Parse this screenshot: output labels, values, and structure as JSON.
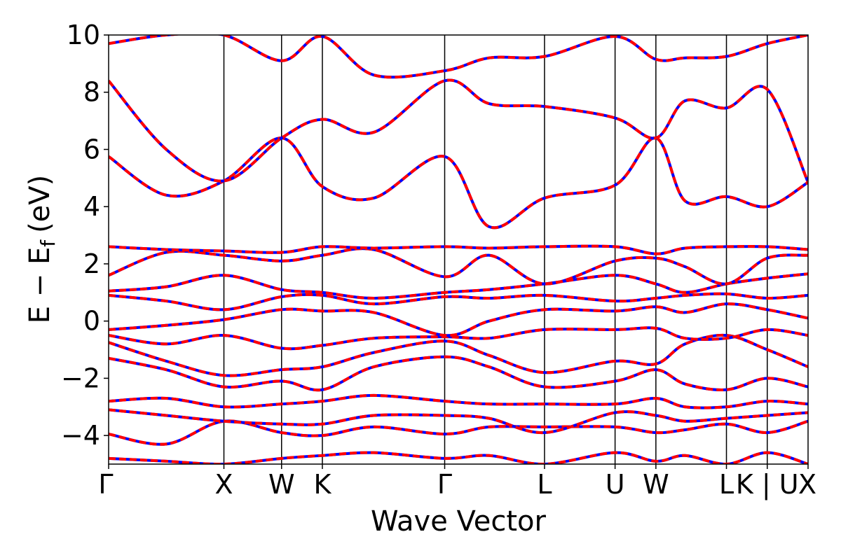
{
  "chart_data": {
    "type": "line",
    "title": "",
    "xlabel": "Wave Vector",
    "ylabel": "E − E_f (eV)",
    "ylabel_main": "E − E",
    "ylabel_sub": "f",
    "ylabel_unit": "(eV)",
    "ylim": [
      -5,
      10
    ],
    "yticks": [
      -4,
      -2,
      0,
      2,
      4,
      6,
      8,
      10
    ],
    "ytick_labels": [
      "−4",
      "−2",
      "0",
      "2",
      "4",
      "6",
      "8",
      "10"
    ],
    "kpath_labels": [
      "Γ",
      "X",
      "W",
      "K",
      "Γ",
      "L",
      "U",
      "W",
      "L",
      "K | U",
      "X"
    ],
    "kpath_positions": [
      0,
      1.0,
      1.5,
      1.854,
      2.915,
      3.781,
      4.393,
      4.747,
      5.359,
      5.713,
      6.067
    ],
    "grid": false,
    "legend": "none",
    "colors": {
      "series_a": "#ff0000",
      "series_b": "#0000ff",
      "separator": "#000000"
    },
    "series": [
      {
        "x": [
          0,
          0.5,
          1.0,
          1.5,
          1.854,
          2.3,
          2.915,
          3.3,
          3.781,
          4.393,
          4.747,
          5.0,
          5.359,
          5.713,
          6.067
        ],
        "values": [
          -4.8,
          -4.9,
          -5.0,
          -4.8,
          -4.7,
          -4.6,
          -4.8,
          -4.7,
          -5.0,
          -4.6,
          -4.9,
          -4.7,
          -5.0,
          -4.6,
          -5.0
        ]
      },
      {
        "x": [
          0,
          0.5,
          1.0,
          1.5,
          1.854,
          2.3,
          2.915,
          3.3,
          3.781,
          4.393,
          4.747,
          5.0,
          5.359,
          5.713,
          6.067
        ],
        "values": [
          -3.95,
          -4.3,
          -3.5,
          -3.9,
          -4.0,
          -3.7,
          -3.95,
          -3.7,
          -3.7,
          -3.7,
          -3.9,
          -3.8,
          -3.6,
          -3.9,
          -3.5
        ]
      },
      {
        "x": [
          0,
          0.5,
          1.0,
          1.5,
          1.854,
          2.3,
          2.915,
          3.3,
          3.781,
          4.393,
          4.747,
          5.0,
          5.359,
          5.713,
          6.067
        ],
        "values": [
          -3.1,
          -3.3,
          -3.5,
          -3.6,
          -3.6,
          -3.3,
          -3.3,
          -3.4,
          -3.9,
          -3.2,
          -3.3,
          -3.5,
          -3.4,
          -3.3,
          -3.2
        ]
      },
      {
        "x": [
          0,
          0.5,
          1.0,
          1.5,
          1.854,
          2.3,
          2.915,
          3.3,
          3.781,
          4.393,
          4.747,
          5.0,
          5.359,
          5.713,
          6.067
        ],
        "values": [
          -2.8,
          -2.7,
          -3.0,
          -2.9,
          -2.8,
          -2.6,
          -2.8,
          -2.9,
          -2.9,
          -2.9,
          -2.7,
          -3.0,
          -3.0,
          -2.8,
          -2.9
        ]
      },
      {
        "x": [
          0,
          0.5,
          1.0,
          1.5,
          1.854,
          2.3,
          2.915,
          3.3,
          3.781,
          4.393,
          4.747,
          5.0,
          5.359,
          5.713,
          6.067
        ],
        "values": [
          -1.3,
          -1.7,
          -2.3,
          -2.1,
          -2.4,
          -1.6,
          -1.25,
          -1.6,
          -2.3,
          -2.1,
          -1.7,
          -2.2,
          -2.4,
          -2.0,
          -2.3
        ]
      },
      {
        "x": [
          0,
          0.5,
          1.0,
          1.5,
          1.854,
          2.3,
          2.915,
          3.3,
          3.781,
          4.393,
          4.747,
          5.0,
          5.359,
          5.713,
          6.067
        ],
        "values": [
          -0.75,
          -1.4,
          -1.9,
          -1.7,
          -1.6,
          -1.1,
          -0.7,
          -1.2,
          -1.8,
          -1.4,
          -1.5,
          -0.8,
          -0.5,
          -1.0,
          -1.6
        ]
      },
      {
        "x": [
          0,
          0.5,
          1.0,
          1.5,
          1.854,
          2.3,
          2.915,
          3.3,
          3.781,
          4.393,
          4.747,
          5.0,
          5.359,
          5.713,
          6.067
        ],
        "values": [
          -0.5,
          -0.8,
          -0.5,
          -0.95,
          -0.85,
          -0.6,
          -0.55,
          -0.6,
          -0.3,
          -0.3,
          -0.25,
          -0.6,
          -0.6,
          -0.3,
          -0.5
        ]
      },
      {
        "x": [
          0,
          0.5,
          1.0,
          1.5,
          1.854,
          2.3,
          2.915,
          3.3,
          3.781,
          4.393,
          4.747,
          5.0,
          5.359,
          5.713,
          6.067
        ],
        "values": [
          -0.3,
          -0.15,
          0.05,
          0.4,
          0.35,
          0.3,
          -0.5,
          0.0,
          0.4,
          0.35,
          0.5,
          0.3,
          0.6,
          0.4,
          0.1
        ]
      },
      {
        "x": [
          0,
          0.5,
          1.0,
          1.5,
          1.854,
          2.3,
          2.915,
          3.3,
          3.781,
          4.393,
          4.747,
          5.0,
          5.359,
          5.713,
          6.067
        ],
        "values": [
          0.9,
          0.7,
          0.4,
          0.85,
          0.9,
          0.6,
          0.85,
          0.8,
          0.9,
          0.7,
          0.8,
          0.9,
          0.95,
          0.8,
          0.9
        ]
      },
      {
        "x": [
          0,
          0.5,
          1.0,
          1.5,
          1.854,
          2.3,
          2.915,
          3.3,
          3.781,
          4.393,
          4.747,
          5.0,
          5.359,
          5.713,
          6.067
        ],
        "values": [
          1.05,
          1.2,
          1.6,
          1.1,
          1.0,
          0.8,
          1.0,
          1.1,
          1.3,
          1.6,
          1.3,
          1.0,
          1.3,
          1.5,
          1.65
        ]
      },
      {
        "x": [
          0,
          0.5,
          1.0,
          1.5,
          1.854,
          2.3,
          2.915,
          3.3,
          3.781,
          4.393,
          4.747,
          5.0,
          5.359,
          5.713,
          6.067
        ],
        "values": [
          1.6,
          2.4,
          2.3,
          2.1,
          2.3,
          2.5,
          1.55,
          2.3,
          1.3,
          2.1,
          2.2,
          1.9,
          1.3,
          2.2,
          2.3
        ]
      },
      {
        "x": [
          0,
          0.5,
          1.0,
          1.5,
          1.854,
          2.3,
          2.915,
          3.3,
          3.781,
          4.393,
          4.747,
          5.0,
          5.359,
          5.713,
          6.067
        ],
        "values": [
          2.6,
          2.5,
          2.45,
          2.4,
          2.6,
          2.55,
          2.6,
          2.55,
          2.6,
          2.6,
          2.35,
          2.55,
          2.6,
          2.6,
          2.5
        ]
      },
      {
        "x": [
          0,
          0.5,
          1.0,
          1.5,
          1.854,
          2.3,
          2.915,
          3.3,
          3.781,
          4.393,
          4.747,
          5.0,
          5.359,
          5.713,
          6.067
        ],
        "values": [
          5.75,
          4.4,
          4.9,
          6.4,
          4.7,
          4.3,
          5.75,
          3.3,
          4.3,
          4.75,
          6.4,
          4.2,
          4.35,
          4.0,
          4.85
        ]
      },
      {
        "x": [
          0,
          0.5,
          1.0,
          1.5,
          1.854,
          2.3,
          2.915,
          3.3,
          3.781,
          4.393,
          4.747,
          5.0,
          5.359,
          5.713,
          6.067
        ],
        "values": [
          8.4,
          6.0,
          4.9,
          6.4,
          7.05,
          6.6,
          8.4,
          7.6,
          7.5,
          7.1,
          6.4,
          7.7,
          7.45,
          8.1,
          4.85
        ]
      },
      {
        "x": [
          0,
          0.5,
          1.0,
          1.5,
          1.854,
          2.3,
          2.915,
          3.3,
          3.781,
          4.393,
          4.747,
          5.0,
          5.359,
          5.713,
          6.067
        ],
        "values": [
          9.7,
          10.0,
          10.0,
          9.1,
          9.95,
          8.6,
          8.75,
          9.2,
          9.25,
          9.95,
          9.15,
          9.2,
          9.25,
          9.7,
          10.0
        ]
      }
    ]
  }
}
